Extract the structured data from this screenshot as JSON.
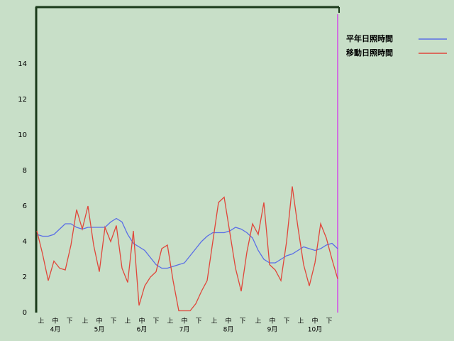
{
  "chart_data": {
    "type": "line",
    "x": [
      0,
      4,
      8,
      12,
      16,
      20,
      24,
      28,
      32,
      36,
      40,
      44,
      48,
      52,
      56,
      60,
      64,
      68,
      72,
      76,
      80,
      84,
      88,
      92,
      96,
      100,
      104,
      108,
      112,
      116,
      120,
      124,
      128,
      132,
      136,
      140,
      144,
      148,
      152,
      156,
      160,
      164,
      168,
      172,
      176,
      180,
      184,
      188,
      192,
      196,
      200,
      204,
      208,
      212
    ],
    "series": [
      {
        "name": "平年日照時間",
        "color": "#5a6ee6",
        "values": [
          4.4,
          4.3,
          4.3,
          4.4,
          4.7,
          5.0,
          5.0,
          4.8,
          4.7,
          4.8,
          4.8,
          4.8,
          4.8,
          5.1,
          5.3,
          5.1,
          4.4,
          3.9,
          3.7,
          3.5,
          3.1,
          2.7,
          2.5,
          2.5,
          2.6,
          2.7,
          2.8,
          3.2,
          3.6,
          4.0,
          4.3,
          4.5,
          4.5,
          4.5,
          4.6,
          4.8,
          4.7,
          4.5,
          4.2,
          3.5,
          3.0,
          2.8,
          2.8,
          3.0,
          3.2,
          3.3,
          3.5,
          3.7,
          3.6,
          3.5,
          3.6,
          3.8,
          3.9,
          3.6
        ]
      },
      {
        "name": "移動日照時間",
        "color": "#e0463a",
        "values": [
          4.6,
          3.3,
          1.8,
          2.9,
          2.5,
          2.4,
          3.8,
          5.8,
          4.7,
          6.0,
          3.8,
          2.3,
          4.8,
          4.0,
          4.9,
          2.5,
          1.7,
          4.6,
          0.4,
          1.5,
          2.0,
          2.3,
          3.6,
          3.8,
          1.8,
          0.1,
          0.1,
          0.1,
          0.5,
          1.2,
          1.8,
          4.0,
          6.2,
          6.5,
          4.5,
          2.5,
          1.2,
          3.4,
          5.0,
          4.4,
          6.2,
          2.7,
          2.4,
          1.8,
          4.0,
          7.1,
          4.8,
          2.7,
          1.5,
          2.8,
          5.0,
          4.2,
          3.0,
          1.9
        ]
      }
    ],
    "xlim": [
      0,
      213
    ],
    "ylim": [
      0,
      17.2
    ],
    "yticks": [
      0,
      2,
      4,
      6,
      8,
      10,
      12,
      14
    ],
    "xticks": [
      {
        "value": 3,
        "label": "上"
      },
      {
        "value": 13,
        "label": "中"
      },
      {
        "value": 23,
        "label": "下"
      },
      {
        "value": 34,
        "label": "上"
      },
      {
        "value": 44,
        "label": "中"
      },
      {
        "value": 54,
        "label": "下"
      },
      {
        "value": 64,
        "label": "上"
      },
      {
        "value": 74,
        "label": "中"
      },
      {
        "value": 84,
        "label": "下"
      },
      {
        "value": 94,
        "label": "上"
      },
      {
        "value": 104,
        "label": "中"
      },
      {
        "value": 114,
        "label": "下"
      },
      {
        "value": 125,
        "label": "上"
      },
      {
        "value": 135,
        "label": "中"
      },
      {
        "value": 145,
        "label": "下"
      },
      {
        "value": 156,
        "label": "上"
      },
      {
        "value": 166,
        "label": "中"
      },
      {
        "value": 176,
        "label": "下"
      },
      {
        "value": 186,
        "label": "上"
      },
      {
        "value": 196,
        "label": "中"
      },
      {
        "value": 206,
        "label": "下"
      }
    ],
    "month_labels": [
      {
        "value": 13,
        "label": "4月"
      },
      {
        "value": 44,
        "label": "5月"
      },
      {
        "value": 74,
        "label": "6月"
      },
      {
        "value": 104,
        "label": "7月"
      },
      {
        "value": 135,
        "label": "8月"
      },
      {
        "value": 166,
        "label": "9月"
      },
      {
        "value": 196,
        "label": "10月"
      }
    ],
    "grid": false,
    "legend": "right"
  }
}
